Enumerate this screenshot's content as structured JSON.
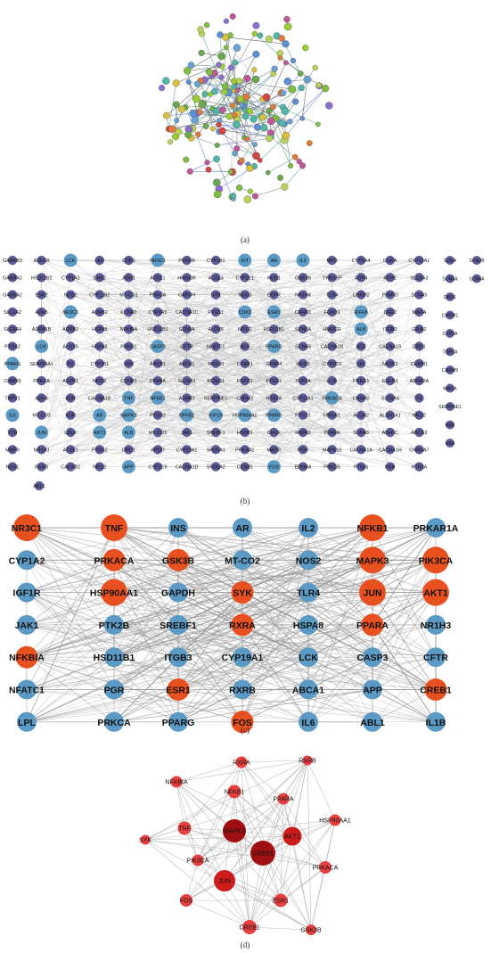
{
  "panels": {
    "a": {
      "label": "(a)"
    },
    "b": {
      "label": "(b)"
    },
    "c": {
      "label": "(c)"
    },
    "d": {
      "label": "(d)"
    }
  },
  "colors": {
    "blue_node": "#5b9ac4",
    "purple_node": "#5d5d9a",
    "red_node": "#e8501f",
    "dark_red": "#a01010",
    "mid_red": "#cc1c1c",
    "light_red": "#e84040",
    "edge": "#9a9a9a"
  },
  "panel_b": {
    "rows": [
      [
        "GABRB3",
        "ADH1B",
        "LCK",
        "LEP",
        "CDK6",
        "NR3C1",
        "PDGFB",
        "CYP1B1",
        "KIT",
        "AR",
        "IL2",
        "MPO",
        "CYP3A4",
        "DGKA",
        "CYP19A1"
      ],
      [
        "GABRA1",
        "HSD11B2",
        "CYP1A2",
        "CHK2",
        "ADH1",
        "ACSL1",
        "HMGCR",
        "ACSL4",
        "CYP2E1",
        "NOS1",
        "GSK3B",
        "TYROBP",
        "ADH4",
        "ACHE",
        "SLC6A3"
      ],
      [
        "GABRA2",
        "ESR2",
        "NOS2",
        "CYP11B2",
        "MT-CO1",
        "PRKCA",
        "GAPDH",
        "SYK",
        "NOS3",
        "EGFR",
        "NR1H4",
        "TLR4",
        "CHRM2",
        "PPARD",
        "SCNA5"
      ],
      [
        "SLC6A2",
        "ADH5",
        "NR3C1",
        "ADRB2",
        "KCNH2",
        "CYP3A5",
        "CACNA1C",
        "PTGS1",
        "CDK2",
        "ESR1",
        "CRHR1",
        "FOXO1",
        "RXRA",
        "DRD2",
        "MAOA"
      ],
      [
        "SLC6A4",
        "ADRA1B",
        "ADRB1",
        "HSPA8",
        "NFKBIA",
        "HSD11B1",
        "SCN5A",
        "ALOX5",
        "NR1I2",
        "HSD11B1",
        "SCN5A",
        "HMGCR",
        "ALB",
        "ITGB3",
        "GRIA2"
      ],
      [
        "PTGS2",
        "LCK",
        "ALOX5",
        "HSPA8",
        "PRKG1",
        "CASP3",
        "CFTR",
        "NFATC1",
        "ALK",
        "PPARG",
        "SCNA5",
        "CACNA1S",
        "ACE",
        "CACNA1S",
        "DRD1"
      ],
      [
        "PPARG",
        "SERPINA1",
        "F2",
        "CYP1B1",
        "VDR",
        "ABCB1",
        "ABCA1",
        "NR1H3",
        "CREB1",
        "GPR84",
        "NR1I3",
        "CYP2C9",
        "LPL",
        "NR3C2",
        "CHRM1"
      ],
      [
        "CHRM3",
        "PRKCA",
        "AGTR1",
        "NR1I2",
        "CCNB1",
        "PPARA",
        "SLC6A1",
        "KCNJ11",
        "FGFR1",
        "PTGS1",
        "TOP2A",
        "IL1B",
        "PRKG1",
        "EGLN1",
        "ADRA2A"
      ],
      [
        "TRPV1",
        "ADH4",
        "KDR",
        "CACNA1B",
        "TNF",
        "NFKB1",
        "ADRB3",
        "SERPINE1",
        "CHRM1",
        "HTR2A",
        "CYP11A1",
        "PRKACA",
        "CHRM2",
        "SLC6A4",
        "F3"
      ],
      [
        "IL6",
        "MT-CO2",
        "KDR",
        "AR",
        "MAPK3",
        "PTGS2",
        "NFKB1",
        "IGF1R",
        "HSP90AA1",
        "PPARG",
        "PTGS1",
        "HMGB1",
        "ALDH2",
        "ALDH1A1",
        "NR1I2"
      ],
      [
        "TTR",
        "JUN",
        "LDLR",
        "AKT1",
        "ALB",
        "MT-CO3",
        "JAK1",
        "SREBF1",
        "HSPB1",
        "CHUK",
        "HSPA5",
        "PPARA",
        "SCNA5",
        "ADH1C",
        "ABCG2"
      ],
      [
        "MMP9",
        "NR1H3",
        "ACSL1",
        "PTGS2",
        "DRD1",
        "APOD",
        "CYP19A1",
        "SRD5A1",
        "PRKAA1",
        "MAOB",
        "PGR",
        "MAPK10",
        "CACNA1A",
        "CACNA1H",
        "CHRNA7"
      ],
      [
        "NOS1",
        "RXRB",
        "CACNB2",
        "NR1I2",
        "APP",
        "CYP2C9",
        "CACNA1D",
        "SRD5A2",
        "CCNB1",
        "FOS",
        "EDNRA",
        "PRKCB",
        "PTGIS",
        "PGR",
        "HTR3A"
      ]
    ],
    "extra_row": [
      "ABL1"
    ],
    "side_rows": [
      [
        "SCNA",
        "SCN2B"
      ],
      [
        "SCN5A",
        "SCN4A"
      ],
      [
        "DRD1"
      ],
      [
        "CHRM1"
      ],
      [
        "CYP3A"
      ],
      [
        "TOP2A"
      ],
      [
        "CHRM5"
      ],
      [
        "MAOA"
      ],
      [
        "SERPINE1"
      ],
      [
        "HBB"
      ],
      [
        "HBA"
      ]
    ]
  },
  "panel_c": {
    "rows": [
      [
        {
          "t": "NR3C1",
          "c": "r"
        },
        {
          "t": "TNF",
          "c": "r"
        },
        {
          "t": "INS",
          "c": "b"
        },
        {
          "t": "AR",
          "c": "b"
        },
        {
          "t": "IL2",
          "c": "b"
        },
        {
          "t": "NFKB1",
          "c": "r"
        },
        {
          "t": "PRKAR1A",
          "c": "b"
        }
      ],
      [
        {
          "t": "CYP1A2",
          "c": "b"
        },
        {
          "t": "PRKACA",
          "c": "r"
        },
        {
          "t": "GSK3B",
          "c": "r"
        },
        {
          "t": "MT-CO2",
          "c": "b"
        },
        {
          "t": "NOS2",
          "c": "b"
        },
        {
          "t": "MAPK3",
          "c": "r"
        },
        {
          "t": "PIK3CA",
          "c": "r"
        }
      ],
      [
        {
          "t": "IGF1R",
          "c": "b"
        },
        {
          "t": "HSP90AA1",
          "c": "r"
        },
        {
          "t": "GAPDH",
          "c": "b"
        },
        {
          "t": "SYK",
          "c": "r"
        },
        {
          "t": "TLR4",
          "c": "b"
        },
        {
          "t": "JUN",
          "c": "r"
        },
        {
          "t": "AKT1",
          "c": "r"
        }
      ],
      [
        {
          "t": "JAK1",
          "c": "b"
        },
        {
          "t": "PTK2B",
          "c": "b"
        },
        {
          "t": "SREBF1",
          "c": "b"
        },
        {
          "t": "RXRA",
          "c": "r"
        },
        {
          "t": "HSPA8",
          "c": "b"
        },
        {
          "t": "PPARA",
          "c": "r"
        },
        {
          "t": "NR1H3",
          "c": "b"
        }
      ],
      [
        {
          "t": "NFKBIA",
          "c": "r"
        },
        {
          "t": "HSD11B1",
          "c": "b"
        },
        {
          "t": "ITGB3",
          "c": "b"
        },
        {
          "t": "CYP19A1",
          "c": "b"
        },
        {
          "t": "LCK",
          "c": "b"
        },
        {
          "t": "CASP3",
          "c": "b"
        },
        {
          "t": "CFTR",
          "c": "b"
        }
      ],
      [
        {
          "t": "NFATC1",
          "c": "b"
        },
        {
          "t": "PGR",
          "c": "b"
        },
        {
          "t": "ESR1",
          "c": "r"
        },
        {
          "t": "RXRB",
          "c": "b"
        },
        {
          "t": "ABCA1",
          "c": "b"
        },
        {
          "t": "APP",
          "c": "b"
        },
        {
          "t": "CREB1",
          "c": "r"
        }
      ],
      [
        {
          "t": "LPL",
          "c": "b"
        },
        {
          "t": "PRKCA",
          "c": "b"
        },
        {
          "t": "PPARG",
          "c": "b"
        },
        {
          "t": "FOS",
          "c": "r"
        },
        {
          "t": "IL6",
          "c": "b"
        },
        {
          "t": "ABL1",
          "c": "b"
        },
        {
          "t": "IL1B",
          "c": "b"
        }
      ]
    ]
  },
  "panel_d": {
    "nodes": [
      {
        "id": "RXRA",
        "label": "RXRA",
        "shade": "light"
      },
      {
        "id": "RXRB",
        "label": "RXRB",
        "shade": "light"
      },
      {
        "id": "NFKBIA",
        "label": "NFKBIA",
        "shade": "light"
      },
      {
        "id": "NFKB1",
        "label": "NFKB1",
        "shade": "light"
      },
      {
        "id": "PPARA",
        "label": "PPARA",
        "shade": "light"
      },
      {
        "id": "HSP90AA1",
        "label": "HSP90AA1",
        "shade": "light"
      },
      {
        "id": "TNF",
        "label": "TNF",
        "shade": "light"
      },
      {
        "id": "MAPK3",
        "label": "MAPK3",
        "shade": "dark"
      },
      {
        "id": "AKT1",
        "label": "AKT1",
        "shade": "mid"
      },
      {
        "id": "SYK",
        "label": "SYK",
        "shade": "light"
      },
      {
        "id": "CREB1",
        "label": "CREB1",
        "shade": "dark"
      },
      {
        "id": "PIK3CA",
        "label": "PIK3CA",
        "shade": "light"
      },
      {
        "id": "PRKACA",
        "label": "PRKACA",
        "shade": "light"
      },
      {
        "id": "JUN",
        "label": "JUN",
        "shade": "mid"
      },
      {
        "id": "FOS",
        "label": "FOS",
        "shade": "light"
      },
      {
        "id": "ESR1",
        "label": "ESR1",
        "shade": "light"
      },
      {
        "id": "GNB1",
        "label": "CREB1",
        "shade": "light"
      },
      {
        "id": "GSK3B",
        "label": "GSK3B",
        "shade": "light"
      }
    ]
  }
}
